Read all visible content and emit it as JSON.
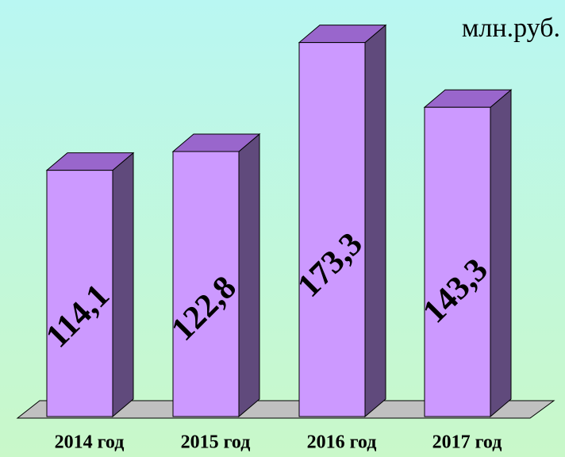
{
  "chart_data": {
    "type": "bar3d",
    "unit": "млн.руб.",
    "categories": [
      "2014 год",
      "2015 год",
      "2016 год",
      "2017 год"
    ],
    "values": [
      114.1,
      122.8,
      173.3,
      143.3
    ],
    "value_labels": [
      "114,1",
      "122,8",
      "173,3",
      "143,3"
    ],
    "colors": {
      "front": "#cc99ff",
      "side": "#604a7c",
      "top": "#9966cc"
    }
  }
}
